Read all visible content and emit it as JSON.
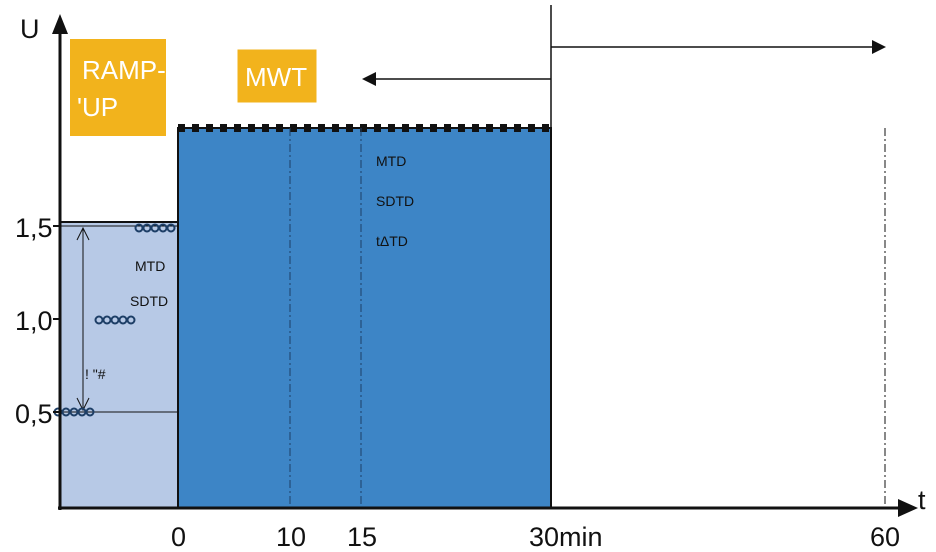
{
  "axes": {
    "y_label": "U",
    "x_label": "t",
    "y_ticks": [
      "1,5",
      "1,0",
      "0,5"
    ],
    "x_ticks": [
      "0",
      "10",
      "15",
      "30min",
      "60"
    ]
  },
  "phases": {
    "ramp_up_label_line1": "RAMP-",
    "ramp_up_label_line2": "'UP",
    "mwt_label": "MWT"
  },
  "labels": {
    "mtd_left": "MTD",
    "sdtd_left": "SDTD",
    "delta_label": "! \"#",
    "mtd_main": "MTD",
    "sdtd_main": "SDTD",
    "tdtd_main": "tΔTD"
  },
  "colors": {
    "ramp_fill": "#b7c9e6",
    "main_fill": "#3d85c6",
    "label_box": "#f2b31c",
    "axis": "#111111"
  }
}
